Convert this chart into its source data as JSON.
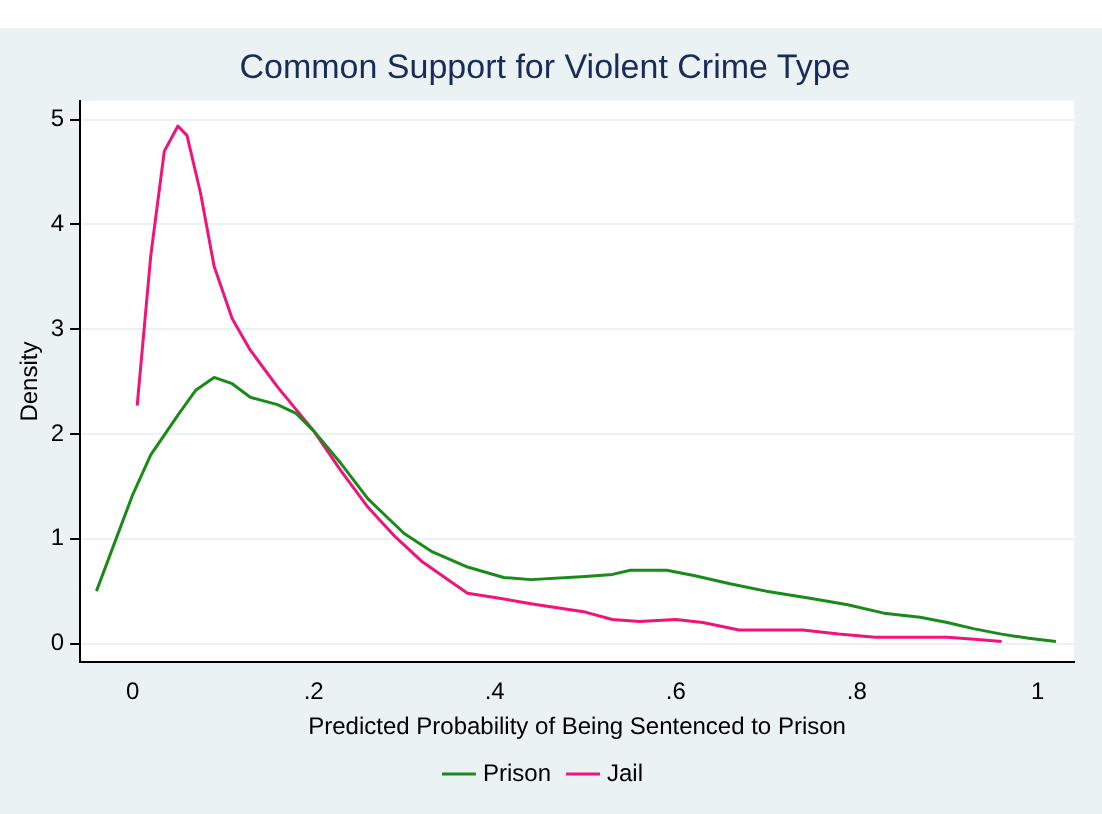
{
  "chart_data": {
    "type": "line",
    "title": "Common Support for Violent Crime Type",
    "xlabel": "Predicted Probability of Being Sentenced to Prison",
    "ylabel": "Density",
    "xlim": [
      -0.058,
      1.04
    ],
    "ylim": [
      -0.18,
      5.18
    ],
    "xticks": [
      0,
      {
        "value": 0.2,
        "label": ".2"
      },
      {
        "value": 0.4,
        "label": ".4"
      },
      {
        "value": 0.6,
        "label": ".6"
      },
      {
        "value": 0.8,
        "label": ".8"
      },
      1
    ],
    "yticks": [
      0,
      1,
      2,
      3,
      4,
      5
    ],
    "grid": "y",
    "legend": "bottom",
    "marker": "none",
    "line_style": "solid",
    "series": [
      {
        "name": "Prison",
        "color": "#1a8a1a",
        "x": [
          -0.04,
          0,
          0.02,
          0.05,
          0.07,
          0.09,
          0.11,
          0.13,
          0.16,
          0.18,
          0.2,
          0.23,
          0.26,
          0.3,
          0.33,
          0.37,
          0.41,
          0.44,
          0.5,
          0.53,
          0.55,
          0.59,
          0.62,
          0.66,
          0.7,
          0.75,
          0.79,
          0.83,
          0.87,
          0.9,
          0.93,
          0.96,
          0.99,
          1.02
        ],
        "values": [
          0.5,
          1.42,
          1.8,
          2.18,
          2.42,
          2.54,
          2.48,
          2.35,
          2.28,
          2.2,
          2.03,
          1.72,
          1.38,
          1.05,
          0.88,
          0.73,
          0.63,
          0.61,
          0.64,
          0.66,
          0.7,
          0.7,
          0.65,
          0.57,
          0.5,
          0.43,
          0.37,
          0.29,
          0.25,
          0.2,
          0.14,
          0.09,
          0.05,
          0.02
        ]
      },
      {
        "name": "Jail",
        "color": "#f0147a",
        "x": [
          0.005,
          0.02,
          0.035,
          0.05,
          0.06,
          0.075,
          0.09,
          0.11,
          0.13,
          0.16,
          0.2,
          0.23,
          0.26,
          0.29,
          0.32,
          0.35,
          0.37,
          0.4,
          0.44,
          0.5,
          0.53,
          0.56,
          0.6,
          0.63,
          0.67,
          0.7,
          0.74,
          0.78,
          0.82,
          0.86,
          0.9,
          0.93,
          0.96
        ],
        "values": [
          2.27,
          3.7,
          4.7,
          4.94,
          4.85,
          4.3,
          3.6,
          3.1,
          2.8,
          2.45,
          2.03,
          1.65,
          1.3,
          1.02,
          0.78,
          0.6,
          0.48,
          0.44,
          0.38,
          0.3,
          0.23,
          0.21,
          0.23,
          0.2,
          0.13,
          0.13,
          0.13,
          0.09,
          0.06,
          0.06,
          0.06,
          0.04,
          0.02
        ]
      }
    ]
  }
}
